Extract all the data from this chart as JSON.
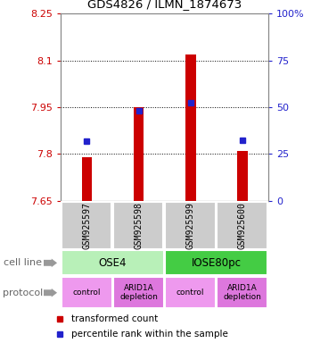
{
  "title": "GDS4826 / ILMN_1874673",
  "samples": [
    "GSM925597",
    "GSM925598",
    "GSM925599",
    "GSM925600"
  ],
  "bar_values": [
    7.79,
    7.95,
    8.12,
    7.81
  ],
  "bar_base": 7.65,
  "percentile_values": [
    7.84,
    7.938,
    7.963,
    7.845
  ],
  "ylim": [
    7.65,
    8.25
  ],
  "yticks_left": [
    7.65,
    7.8,
    7.95,
    8.1,
    8.25
  ],
  "yticks_right": [
    0,
    25,
    50,
    75,
    100
  ],
  "yticks_right_labels": [
    "0",
    "25",
    "50",
    "75",
    "100%"
  ],
  "hlines": [
    7.8,
    7.95,
    8.1
  ],
  "bar_color": "#cc0000",
  "percentile_color": "#2222cc",
  "cell_line_data": [
    {
      "label": "OSE4",
      "start": 0,
      "end": 2,
      "color": "#b8f0b8"
    },
    {
      "label": "IOSE80pc",
      "start": 2,
      "end": 4,
      "color": "#44cc44"
    }
  ],
  "protocol_data": [
    {
      "label": "control",
      "start": 0,
      "end": 1,
      "color": "#ee99ee"
    },
    {
      "label": "ARID1A\ndepletion",
      "start": 1,
      "end": 2,
      "color": "#dd77dd"
    },
    {
      "label": "control",
      "start": 2,
      "end": 3,
      "color": "#ee99ee"
    },
    {
      "label": "ARID1A\ndepletion",
      "start": 3,
      "end": 4,
      "color": "#dd77dd"
    }
  ],
  "sample_box_color": "#cccccc",
  "left_label_color": "#cc0000",
  "right_label_color": "#2222cc",
  "legend_items": [
    {
      "color": "#cc0000",
      "label": "transformed count"
    },
    {
      "color": "#2222cc",
      "label": "percentile rank within the sample"
    }
  ],
  "annotation_labels": [
    "cell line",
    "protocol"
  ],
  "arrow_color": "#999999"
}
